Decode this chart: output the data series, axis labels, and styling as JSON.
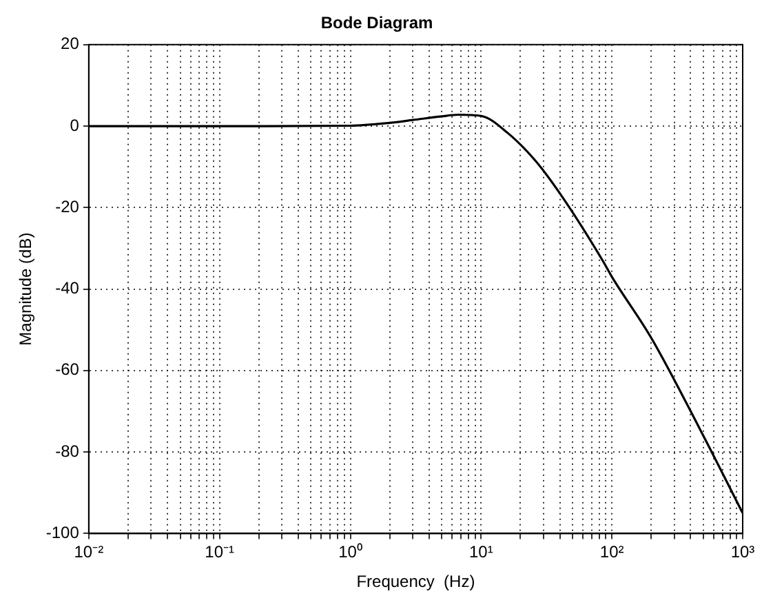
{
  "chart_data": {
    "type": "line",
    "title": "Bode Diagram",
    "xlabel": "Frequency  (Hz)",
    "ylabel": "Magnitude (dB)",
    "log": "x",
    "grid": true,
    "marker": "none",
    "line_style": "solid",
    "x": [
      0.01,
      0.1,
      1,
      2,
      3,
      5,
      6.7,
      10,
      16,
      26,
      41,
      85,
      100,
      200,
      500,
      1000
    ],
    "series": [
      {
        "color": "#000000",
        "values": [
          0,
          0,
          0.1,
          0.8,
          1.5,
          2.4,
          2.8,
          2.5,
          -1.7,
          -8.5,
          -17,
          -33,
          -37,
          -52,
          -76,
          -95
        ]
      }
    ],
    "xlim": [
      0.01,
      1000
    ],
    "xticks": [
      {
        "value": 0.01,
        "label": "10⁻²"
      },
      {
        "value": 0.02,
        "label": null
      },
      {
        "value": 0.03,
        "label": null
      },
      {
        "value": 0.04,
        "label": null
      },
      {
        "value": 0.05,
        "label": null
      },
      {
        "value": 0.06,
        "label": null
      },
      {
        "value": 0.07,
        "label": null
      },
      {
        "value": 0.08,
        "label": null
      },
      {
        "value": 0.09,
        "label": null
      },
      {
        "value": 0.1,
        "label": "10⁻¹"
      },
      {
        "value": 0.2,
        "label": null
      },
      {
        "value": 0.3,
        "label": null
      },
      {
        "value": 0.4,
        "label": null
      },
      {
        "value": 0.5,
        "label": null
      },
      {
        "value": 0.6,
        "label": null
      },
      {
        "value": 0.7,
        "label": null
      },
      {
        "value": 0.8,
        "label": null
      },
      {
        "value": 0.9,
        "label": null
      },
      {
        "value": 1,
        "label": "10⁰"
      },
      {
        "value": 2,
        "label": null
      },
      {
        "value": 3,
        "label": null
      },
      {
        "value": 4,
        "label": null
      },
      {
        "value": 5,
        "label": null
      },
      {
        "value": 6,
        "label": null
      },
      {
        "value": 7,
        "label": null
      },
      {
        "value": 8,
        "label": null
      },
      {
        "value": 9,
        "label": null
      },
      {
        "value": 10,
        "label": "10¹"
      },
      {
        "value": 20,
        "label": null
      },
      {
        "value": 30,
        "label": null
      },
      {
        "value": 40,
        "label": null
      },
      {
        "value": 50,
        "label": null
      },
      {
        "value": 60,
        "label": null
      },
      {
        "value": 70,
        "label": null
      },
      {
        "value": 80,
        "label": null
      },
      {
        "value": 90,
        "label": null
      },
      {
        "value": 100,
        "label": "10²"
      },
      {
        "value": 200,
        "label": null
      },
      {
        "value": 300,
        "label": null
      },
      {
        "value": 400,
        "label": null
      },
      {
        "value": 500,
        "label": null
      },
      {
        "value": 600,
        "label": null
      },
      {
        "value": 700,
        "label": null
      },
      {
        "value": 800,
        "label": null
      },
      {
        "value": 900,
        "label": null
      },
      {
        "value": 1000,
        "label": "10³"
      }
    ],
    "ylim": [
      -100,
      20
    ],
    "yticks": [
      -100,
      -80,
      -60,
      -40,
      -20,
      0,
      20
    ]
  }
}
